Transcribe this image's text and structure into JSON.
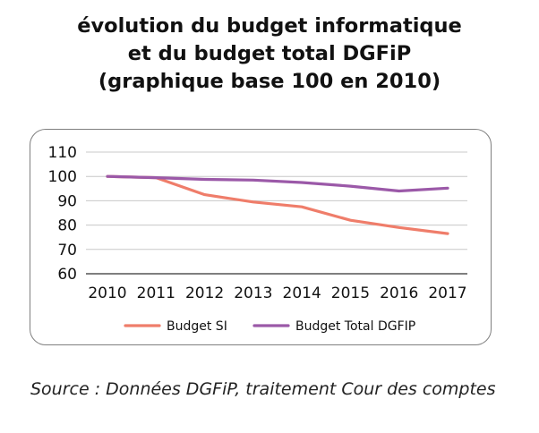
{
  "title_lines": [
    "évolution du budget informatique",
    "et du budget total DGFiP",
    "(graphique base 100 en 2010)"
  ],
  "source": "Source : Données DGFiP, traitement Cour des comptes",
  "chart_data": {
    "type": "line",
    "x": [
      "2010",
      "2011",
      "2012",
      "2013",
      "2014",
      "2015",
      "2016",
      "2017"
    ],
    "ylim": [
      60,
      110
    ],
    "yticks": [
      60,
      70,
      80,
      90,
      100,
      110
    ],
    "grid": true,
    "legend_position": "bottom",
    "series": [
      {
        "name": "Budget SI",
        "color": "#ef7d6a",
        "values": [
          100,
          99.5,
          92.5,
          89.5,
          87.5,
          82,
          79,
          76.5
        ]
      },
      {
        "name": "Budget Total DGFIP",
        "color": "#9b59a8",
        "values": [
          100,
          99.5,
          98.8,
          98.5,
          97.5,
          96,
          94,
          95.2
        ]
      }
    ]
  }
}
